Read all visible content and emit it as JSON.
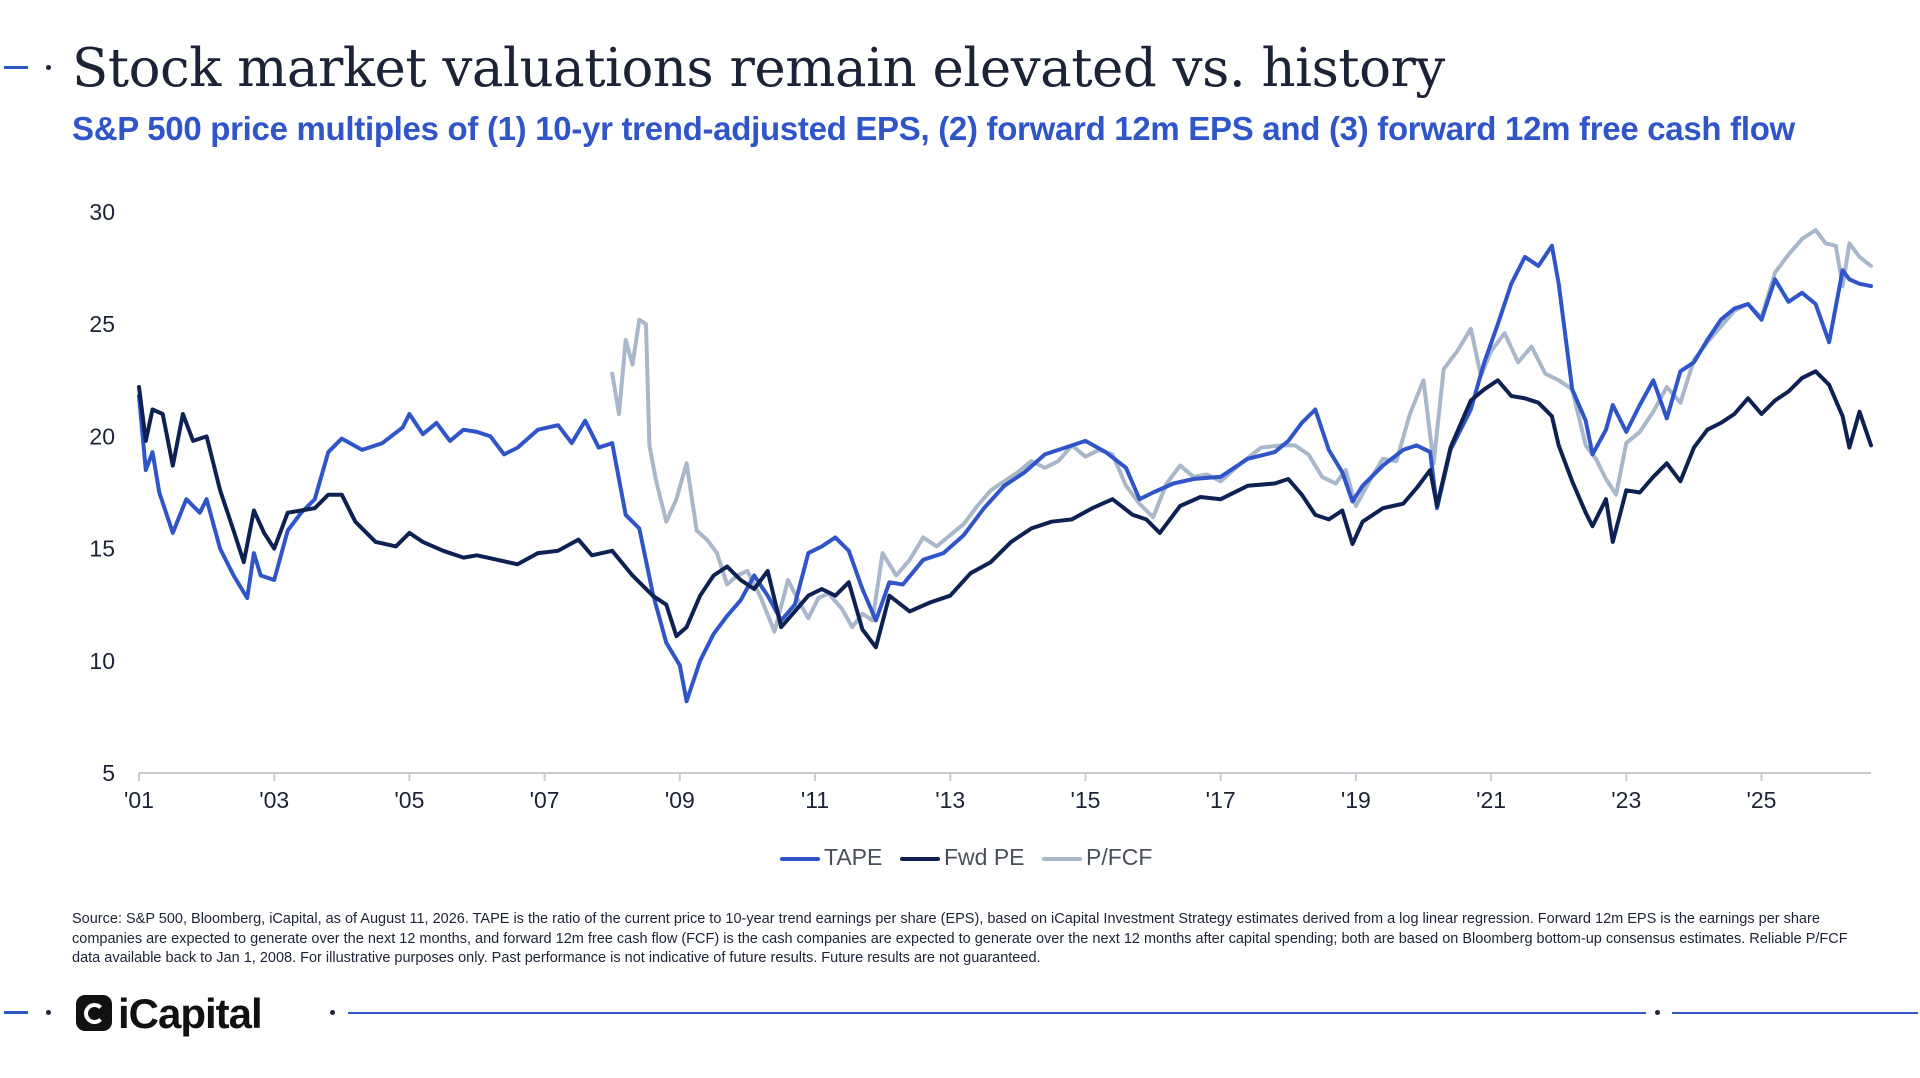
{
  "header": {
    "title": "Stock market valuations remain elevated vs. history",
    "subtitle": "S&P 500 price multiples of (1) 10-yr trend-adjusted EPS, (2) forward 12m EPS and (3) forward 12m free cash flow"
  },
  "footnote": "Source: S&P 500, Bloomberg, iCapital, as of August 11, 2026. TAPE is the ratio of the current price to 10-year trend earnings per share (EPS), based on iCapital Investment Strategy estimates derived from a log linear regression. Forward 12m EPS is the earnings per share companies are expected to generate over the next 12 months, and forward 12m free cash flow (FCF) is the cash companies are expected to generate over the next 12 months after capital spending; both are based on Bloomberg bottom-up consensus estimates. Reliable P/FCF data available back to Jan 1, 2008. For illustrative purposes only. Past performance is not indicative of future results. Future results are not guaranteed.",
  "brand": {
    "name": "iCapital",
    "logo_icon": "icapital-logo-icon"
  },
  "colors": {
    "tape": "#2f55c8",
    "fwd_pe": "#0d2152",
    "pfcf": "#a8b7ca",
    "axis": "#c8ccd2",
    "text": "#1c2336"
  },
  "chart_data": {
    "type": "line",
    "title": "",
    "xlabel": "",
    "ylabel": "",
    "ylim": [
      5,
      30
    ],
    "xlim": [
      2001,
      2026.62
    ],
    "yticks": [
      5,
      10,
      15,
      20,
      25,
      30
    ],
    "ytick_labels": [
      "5",
      "10",
      "15",
      "20",
      "25",
      "30"
    ],
    "xticks": [
      2001,
      2003,
      2005,
      2007,
      2009,
      2011,
      2013,
      2015,
      2017,
      2019,
      2021,
      2023,
      2025
    ],
    "xtick_labels": [
      "'01",
      "'03",
      "'05",
      "'07",
      "'09",
      "'11",
      "'13",
      "'15",
      "'17",
      "'19",
      "'21",
      "'23",
      "'25"
    ],
    "grid": false,
    "legend": "bottom-center",
    "series": [
      {
        "name": "TAPE",
        "x": [
          2001.0,
          2001.1,
          2001.2,
          2001.3,
          2001.5,
          2001.7,
          2001.9,
          2002.0,
          2002.2,
          2002.4,
          2002.6,
          2002.7,
          2002.8,
          2003.0,
          2003.2,
          2003.4,
          2003.6,
          2003.8,
          2004.0,
          2004.3,
          2004.6,
          2004.9,
          2005.0,
          2005.2,
          2005.4,
          2005.6,
          2005.8,
          2006.0,
          2006.2,
          2006.4,
          2006.6,
          2006.9,
          2007.2,
          2007.4,
          2007.6,
          2007.8,
          2008.0,
          2008.2,
          2008.4,
          2008.6,
          2008.8,
          2009.0,
          2009.1,
          2009.3,
          2009.5,
          2009.7,
          2009.9,
          2010.1,
          2010.3,
          2010.5,
          2010.7,
          2010.9,
          2011.1,
          2011.3,
          2011.5,
          2011.7,
          2011.9,
          2012.1,
          2012.3,
          2012.6,
          2012.9,
          2013.2,
          2013.5,
          2013.8,
          2014.1,
          2014.4,
          2014.7,
          2015.0,
          2015.3,
          2015.6,
          2015.8,
          2016.0,
          2016.3,
          2016.6,
          2017.0,
          2017.4,
          2017.8,
          2018.0,
          2018.2,
          2018.4,
          2018.6,
          2018.8,
          2018.95,
          2019.1,
          2019.4,
          2019.7,
          2019.9,
          2020.1,
          2020.2,
          2020.4,
          2020.7,
          2020.9,
          2021.1,
          2021.3,
          2021.5,
          2021.7,
          2021.9,
          2022.0,
          2022.2,
          2022.4,
          2022.5,
          2022.7,
          2022.8,
          2023.0,
          2023.2,
          2023.4,
          2023.6,
          2023.8,
          2024.0,
          2024.2,
          2024.4,
          2024.6,
          2024.8,
          2025.0,
          2025.2,
          2025.4,
          2025.6,
          2025.8,
          2026.0,
          2026.2,
          2026.3,
          2026.45,
          2026.62
        ],
        "values": [
          21.8,
          18.5,
          19.3,
          17.5,
          15.7,
          17.2,
          16.6,
          17.2,
          15.0,
          13.8,
          12.8,
          14.8,
          13.8,
          13.6,
          15.8,
          16.6,
          17.2,
          19.3,
          19.9,
          19.4,
          19.7,
          20.4,
          21.0,
          20.1,
          20.6,
          19.8,
          20.3,
          20.2,
          20.0,
          19.2,
          19.5,
          20.3,
          20.5,
          19.7,
          20.7,
          19.5,
          19.7,
          16.5,
          15.9,
          13.0,
          10.8,
          9.8,
          8.2,
          10.0,
          11.2,
          12.0,
          12.7,
          13.8,
          12.9,
          11.8,
          12.5,
          14.8,
          15.1,
          15.5,
          14.9,
          13.2,
          11.8,
          13.5,
          13.4,
          14.5,
          14.8,
          15.6,
          16.8,
          17.8,
          18.4,
          19.2,
          19.5,
          19.8,
          19.3,
          18.6,
          17.2,
          17.5,
          17.9,
          18.1,
          18.2,
          19.0,
          19.3,
          19.8,
          20.6,
          21.2,
          19.4,
          18.4,
          17.1,
          17.8,
          18.7,
          19.4,
          19.6,
          19.3,
          16.8,
          19.4,
          21.2,
          23.3,
          25.0,
          26.8,
          28.0,
          27.6,
          28.5,
          26.8,
          22.1,
          20.7,
          19.2,
          20.3,
          21.4,
          20.2,
          21.4,
          22.5,
          20.8,
          22.9,
          23.3,
          24.3,
          25.2,
          25.7,
          25.9,
          25.2,
          27.0,
          26.0,
          26.4,
          25.9,
          24.2,
          27.4,
          27.0,
          26.8,
          26.7
        ]
      },
      {
        "name": "Fwd PE",
        "x": [
          2001.0,
          2001.1,
          2001.2,
          2001.35,
          2001.5,
          2001.65,
          2001.8,
          2002.0,
          2002.2,
          2002.4,
          2002.55,
          2002.7,
          2002.85,
          2003.0,
          2003.2,
          2003.4,
          2003.6,
          2003.8,
          2004.0,
          2004.2,
          2004.5,
          2004.8,
          2005.0,
          2005.2,
          2005.5,
          2005.8,
          2006.0,
          2006.3,
          2006.6,
          2006.9,
          2007.2,
          2007.5,
          2007.7,
          2008.0,
          2008.3,
          2008.6,
          2008.8,
          2008.95,
          2009.1,
          2009.3,
          2009.5,
          2009.7,
          2009.9,
          2010.1,
          2010.3,
          2010.5,
          2010.7,
          2010.9,
          2011.1,
          2011.3,
          2011.5,
          2011.7,
          2011.9,
          2012.1,
          2012.4,
          2012.7,
          2013.0,
          2013.3,
          2013.6,
          2013.9,
          2014.2,
          2014.5,
          2014.8,
          2015.1,
          2015.4,
          2015.7,
          2015.9,
          2016.1,
          2016.4,
          2016.7,
          2017.0,
          2017.4,
          2017.8,
          2018.0,
          2018.2,
          2018.4,
          2018.6,
          2018.8,
          2018.95,
          2019.1,
          2019.4,
          2019.7,
          2019.9,
          2020.1,
          2020.2,
          2020.4,
          2020.7,
          2020.9,
          2021.1,
          2021.3,
          2021.5,
          2021.7,
          2021.9,
          2022.0,
          2022.2,
          2022.4,
          2022.5,
          2022.7,
          2022.8,
          2023.0,
          2023.2,
          2023.4,
          2023.6,
          2023.8,
          2024.0,
          2024.2,
          2024.4,
          2024.6,
          2024.8,
          2025.0,
          2025.2,
          2025.4,
          2025.6,
          2025.8,
          2026.0,
          2026.2,
          2026.3,
          2026.45,
          2026.62
        ],
        "values": [
          22.2,
          19.8,
          21.2,
          21.0,
          18.7,
          21.0,
          19.8,
          20.0,
          17.6,
          15.8,
          14.4,
          16.7,
          15.7,
          15.0,
          16.6,
          16.7,
          16.8,
          17.4,
          17.4,
          16.2,
          15.3,
          15.1,
          15.7,
          15.3,
          14.9,
          14.6,
          14.7,
          14.5,
          14.3,
          14.8,
          14.9,
          15.4,
          14.7,
          14.9,
          13.8,
          12.9,
          12.5,
          11.1,
          11.5,
          12.9,
          13.8,
          14.2,
          13.6,
          13.2,
          14.0,
          11.5,
          12.2,
          12.9,
          13.2,
          12.9,
          13.5,
          11.4,
          10.6,
          12.9,
          12.2,
          12.6,
          12.9,
          13.9,
          14.4,
          15.3,
          15.9,
          16.2,
          16.3,
          16.8,
          17.2,
          16.5,
          16.3,
          15.7,
          16.9,
          17.3,
          17.2,
          17.8,
          17.9,
          18.1,
          17.4,
          16.5,
          16.3,
          16.7,
          15.2,
          16.2,
          16.8,
          17.0,
          17.7,
          18.5,
          16.9,
          19.5,
          21.6,
          22.1,
          22.5,
          21.8,
          21.7,
          21.5,
          20.9,
          19.6,
          18.0,
          16.6,
          16.0,
          17.2,
          15.3,
          17.6,
          17.5,
          18.2,
          18.8,
          18.0,
          19.5,
          20.3,
          20.6,
          21.0,
          21.7,
          21.0,
          21.6,
          22.0,
          22.6,
          22.9,
          22.3,
          20.9,
          19.5,
          21.1,
          19.6
        ]
      },
      {
        "name": "P/FCF",
        "x": [
          2008.0,
          2008.1,
          2008.2,
          2008.3,
          2008.4,
          2008.5,
          2008.55,
          2008.65,
          2008.8,
          2008.95,
          2009.1,
          2009.25,
          2009.4,
          2009.55,
          2009.7,
          2009.85,
          2010.0,
          2010.2,
          2010.4,
          2010.6,
          2010.75,
          2010.9,
          2011.05,
          2011.2,
          2011.4,
          2011.55,
          2011.7,
          2011.85,
          2012.0,
          2012.2,
          2012.4,
          2012.6,
          2012.8,
          2013.0,
          2013.2,
          2013.4,
          2013.6,
          2013.8,
          2014.0,
          2014.2,
          2014.4,
          2014.6,
          2014.8,
          2015.0,
          2015.2,
          2015.4,
          2015.6,
          2015.8,
          2016.0,
          2016.2,
          2016.4,
          2016.6,
          2016.8,
          2017.0,
          2017.3,
          2017.6,
          2017.9,
          2018.1,
          2018.3,
          2018.5,
          2018.7,
          2018.85,
          2019.0,
          2019.2,
          2019.4,
          2019.6,
          2019.8,
          2020.0,
          2020.15,
          2020.3,
          2020.5,
          2020.7,
          2020.85,
          2021.0,
          2021.2,
          2021.4,
          2021.6,
          2021.8,
          2022.0,
          2022.2,
          2022.4,
          2022.55,
          2022.7,
          2022.85,
          2023.0,
          2023.2,
          2023.4,
          2023.6,
          2023.8,
          2024.0,
          2024.2,
          2024.4,
          2024.6,
          2024.8,
          2025.0,
          2025.2,
          2025.4,
          2025.6,
          2025.8,
          2025.95,
          2026.1,
          2026.2,
          2026.3,
          2026.45,
          2026.62
        ],
        "values": [
          22.8,
          21.0,
          24.3,
          23.2,
          25.2,
          25.0,
          19.6,
          18.0,
          16.2,
          17.2,
          18.8,
          15.8,
          15.4,
          14.8,
          13.4,
          13.8,
          14.0,
          12.8,
          11.3,
          13.6,
          12.7,
          11.9,
          12.8,
          13.0,
          12.3,
          11.5,
          12.1,
          11.8,
          14.8,
          13.8,
          14.5,
          15.5,
          15.1,
          15.6,
          16.1,
          16.9,
          17.6,
          18.0,
          18.4,
          18.9,
          18.6,
          18.9,
          19.6,
          19.1,
          19.4,
          19.2,
          17.8,
          17.0,
          16.4,
          17.9,
          18.7,
          18.2,
          18.3,
          18.0,
          18.8,
          19.5,
          19.6,
          19.6,
          19.2,
          18.2,
          17.9,
          18.5,
          16.9,
          18.0,
          19.0,
          18.9,
          21.0,
          22.5,
          18.8,
          23.0,
          23.8,
          24.8,
          22.7,
          23.8,
          24.6,
          23.3,
          24.0,
          22.8,
          22.5,
          22.1,
          19.6,
          19.0,
          18.1,
          17.4,
          19.7,
          20.2,
          21.1,
          22.2,
          21.5,
          23.4,
          24.2,
          24.9,
          25.6,
          25.9,
          25.3,
          27.3,
          28.1,
          28.8,
          29.2,
          28.6,
          28.5,
          26.7,
          28.6,
          28.0,
          27.6
        ]
      }
    ]
  }
}
